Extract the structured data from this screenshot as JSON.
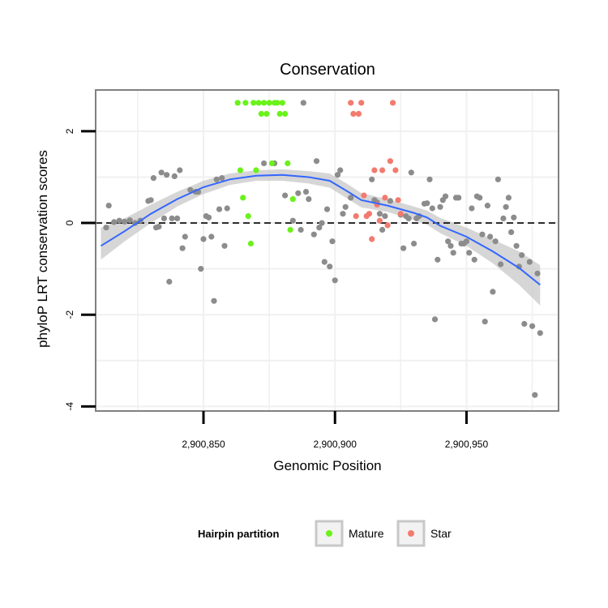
{
  "chart_data": {
    "type": "scatter",
    "title": "Conservation",
    "xlabel": "Genomic Position",
    "ylabel": "phyloP LRT conservation scores",
    "xlim": [
      2900809,
      2900985
    ],
    "ylim": [
      -4.1,
      2.9
    ],
    "x_ticks": [
      2900850,
      2900900,
      2900950
    ],
    "x_tick_labels": [
      "2,900,850",
      "2,900,900",
      "2,900,950"
    ],
    "y_ticks": [
      2,
      0,
      -2,
      -4
    ],
    "y_tick_labels": [
      "2",
      "0",
      "-2",
      "-4"
    ],
    "reference_line": {
      "y": 0,
      "style": "dashed"
    },
    "grid": true,
    "legend": {
      "title": "Hairpin partition",
      "position": "bottom",
      "entries": [
        {
          "label": "Mature",
          "color": "#6af21a"
        },
        {
          "label": "Star",
          "color": "#f27b6e"
        }
      ]
    },
    "colors": {
      "Mature": "#6af21a",
      "Star": "#f27b6e",
      "Other": "#8c8c8c",
      "smooth": "#3366ff",
      "ribbon": "#c8c8c8"
    },
    "series": [
      {
        "name": "Other",
        "points": [
          [
            2900813,
            -0.1
          ],
          [
            2900814,
            0.38
          ],
          [
            2900816,
            0.02
          ],
          [
            2900818,
            0.05
          ],
          [
            2900820,
            0.03
          ],
          [
            2900822,
            0.06
          ],
          [
            2900824,
            0.0
          ],
          [
            2900826,
            0.05
          ],
          [
            2900829,
            0.48
          ],
          [
            2900830,
            0.5
          ],
          [
            2900831,
            0.98
          ],
          [
            2900832,
            -0.1
          ],
          [
            2900833,
            -0.08
          ],
          [
            2900834,
            1.1
          ],
          [
            2900835,
            0.1
          ],
          [
            2900836,
            1.05
          ],
          [
            2900837,
            -1.28
          ],
          [
            2900838,
            0.1
          ],
          [
            2900839,
            1.02
          ],
          [
            2900840,
            0.1
          ],
          [
            2900841,
            1.15
          ],
          [
            2900842,
            -0.55
          ],
          [
            2900843,
            -0.3
          ],
          [
            2900845,
            0.72
          ],
          [
            2900847,
            0.68
          ],
          [
            2900848,
            0.68
          ],
          [
            2900849,
            -1.0
          ],
          [
            2900850,
            -0.35
          ],
          [
            2900851,
            0.15
          ],
          [
            2900852,
            0.12
          ],
          [
            2900853,
            -0.3
          ],
          [
            2900854,
            -1.7
          ],
          [
            2900855,
            0.95
          ],
          [
            2900856,
            0.3
          ],
          [
            2900857,
            0.98
          ],
          [
            2900858,
            -0.5
          ],
          [
            2900859,
            0.32
          ],
          [
            2900873,
            1.3
          ],
          [
            2900877,
            1.3
          ],
          [
            2900881,
            0.6
          ],
          [
            2900884,
            0.05
          ],
          [
            2900886,
            0.65
          ],
          [
            2900887,
            -0.15
          ],
          [
            2900888,
            2.62
          ],
          [
            2900889,
            0.68
          ],
          [
            2900890,
            0.52
          ],
          [
            2900892,
            -0.25
          ],
          [
            2900893,
            1.35
          ],
          [
            2900894,
            -0.1
          ],
          [
            2900895,
            0.0
          ],
          [
            2900896,
            -0.85
          ],
          [
            2900897,
            0.3
          ],
          [
            2900898,
            -0.95
          ],
          [
            2900899,
            -0.4
          ],
          [
            2900900,
            -1.25
          ],
          [
            2900901,
            1.05
          ],
          [
            2900902,
            1.15
          ],
          [
            2900903,
            0.2
          ],
          [
            2900904,
            0.35
          ],
          [
            2900906,
            0.55
          ],
          [
            2900914,
            0.95
          ],
          [
            2900915,
            0.5
          ],
          [
            2900916,
            0.45
          ],
          [
            2900917,
            0.2
          ],
          [
            2900918,
            -0.15
          ],
          [
            2900919,
            0.15
          ],
          [
            2900921,
            0.48
          ],
          [
            2900925,
            0.18
          ],
          [
            2900926,
            -0.55
          ],
          [
            2900927,
            0.15
          ],
          [
            2900928,
            0.1
          ],
          [
            2900929,
            1.1
          ],
          [
            2900930,
            -0.45
          ],
          [
            2900931,
            0.1
          ],
          [
            2900932,
            0.15
          ],
          [
            2900934,
            0.42
          ],
          [
            2900935,
            0.43
          ],
          [
            2900936,
            0.95
          ],
          [
            2900937,
            0.32
          ],
          [
            2900938,
            -2.1
          ],
          [
            2900939,
            -0.8
          ],
          [
            2900940,
            0.35
          ],
          [
            2900941,
            0.5
          ],
          [
            2900942,
            0.58
          ],
          [
            2900943,
            -0.4
          ],
          [
            2900944,
            -0.5
          ],
          [
            2900945,
            -0.65
          ],
          [
            2900946,
            0.55
          ],
          [
            2900947,
            0.55
          ],
          [
            2900948,
            -0.45
          ],
          [
            2900949,
            -0.45
          ],
          [
            2900950,
            -0.4
          ],
          [
            2900951,
            -0.65
          ],
          [
            2900952,
            0.32
          ],
          [
            2900953,
            -0.8
          ],
          [
            2900954,
            0.58
          ],
          [
            2900955,
            0.55
          ],
          [
            2900956,
            -0.25
          ],
          [
            2900957,
            -2.15
          ],
          [
            2900958,
            0.38
          ],
          [
            2900959,
            -0.3
          ],
          [
            2900960,
            -1.5
          ],
          [
            2900961,
            -0.4
          ],
          [
            2900962,
            0.95
          ],
          [
            2900963,
            -0.9
          ],
          [
            2900964,
            0.1
          ],
          [
            2900965,
            0.35
          ],
          [
            2900966,
            0.55
          ],
          [
            2900967,
            -0.2
          ],
          [
            2900968,
            0.12
          ],
          [
            2900969,
            -0.5
          ],
          [
            2900970,
            -0.95
          ],
          [
            2900971,
            -0.7
          ],
          [
            2900972,
            -2.2
          ],
          [
            2900974,
            -0.85
          ],
          [
            2900975,
            -2.25
          ],
          [
            2900976,
            -3.75
          ],
          [
            2900977,
            -1.1
          ],
          [
            2900978,
            -2.4
          ]
        ]
      },
      {
        "name": "Mature",
        "points": [
          [
            2900863,
            2.62
          ],
          [
            2900864,
            1.15
          ],
          [
            2900865,
            0.55
          ],
          [
            2900866,
            2.62
          ],
          [
            2900867,
            0.15
          ],
          [
            2900868,
            -0.45
          ],
          [
            2900869,
            2.62
          ],
          [
            2900870,
            1.15
          ],
          [
            2900871,
            2.62
          ],
          [
            2900872,
            2.38
          ],
          [
            2900873,
            2.62
          ],
          [
            2900874,
            2.38
          ],
          [
            2900875,
            2.62
          ],
          [
            2900876,
            1.3
          ],
          [
            2900877,
            2.62
          ],
          [
            2900878,
            2.62
          ],
          [
            2900879,
            2.38
          ],
          [
            2900880,
            2.62
          ],
          [
            2900881,
            2.38
          ],
          [
            2900882,
            1.3
          ],
          [
            2900883,
            -0.15
          ],
          [
            2900884,
            0.52
          ]
        ]
      },
      {
        "name": "Star",
        "points": [
          [
            2900906,
            2.62
          ],
          [
            2900907,
            2.38
          ],
          [
            2900908,
            0.15
          ],
          [
            2900909,
            2.38
          ],
          [
            2900910,
            2.62
          ],
          [
            2900911,
            0.6
          ],
          [
            2900912,
            0.15
          ],
          [
            2900913,
            0.2
          ],
          [
            2900914,
            -0.35
          ],
          [
            2900915,
            1.15
          ],
          [
            2900916,
            0.4
          ],
          [
            2900917,
            0.05
          ],
          [
            2900918,
            1.15
          ],
          [
            2900919,
            0.55
          ],
          [
            2900920,
            -0.05
          ],
          [
            2900921,
            1.35
          ],
          [
            2900922,
            2.62
          ],
          [
            2900923,
            1.15
          ],
          [
            2900924,
            0.5
          ],
          [
            2900925,
            0.2
          ]
        ]
      }
    ],
    "smooth_line": [
      [
        2900811,
        -0.5
      ],
      [
        2900820,
        -0.18
      ],
      [
        2900830,
        0.2
      ],
      [
        2900840,
        0.52
      ],
      [
        2900850,
        0.78
      ],
      [
        2900860,
        0.95
      ],
      [
        2900870,
        1.03
      ],
      [
        2900880,
        1.05
      ],
      [
        2900890,
        1.0
      ],
      [
        2900898,
        0.92
      ],
      [
        2900905,
        0.68
      ],
      [
        2900910,
        0.5
      ],
      [
        2900920,
        0.38
      ],
      [
        2900930,
        0.22
      ],
      [
        2900935,
        0.12
      ],
      [
        2900940,
        -0.06
      ],
      [
        2900950,
        -0.3
      ],
      [
        2900960,
        -0.62
      ],
      [
        2900970,
        -0.98
      ],
      [
        2900978,
        -1.35
      ]
    ],
    "smooth_band": [
      [
        2900811,
        -0.8,
        -0.1
      ],
      [
        2900820,
        -0.4,
        0.1
      ],
      [
        2900830,
        0.0,
        0.4
      ],
      [
        2900840,
        0.36,
        0.68
      ],
      [
        2900850,
        0.63,
        0.92
      ],
      [
        2900860,
        0.83,
        1.08
      ],
      [
        2900870,
        0.92,
        1.15
      ],
      [
        2900880,
        0.92,
        1.17
      ],
      [
        2900890,
        0.86,
        1.13
      ],
      [
        2900898,
        0.77,
        1.08
      ],
      [
        2900905,
        0.52,
        0.84
      ],
      [
        2900910,
        0.34,
        0.65
      ],
      [
        2900920,
        0.24,
        0.52
      ],
      [
        2900930,
        0.07,
        0.36
      ],
      [
        2900935,
        -0.04,
        0.27
      ],
      [
        2900940,
        -0.22,
        0.11
      ],
      [
        2900950,
        -0.5,
        -0.1
      ],
      [
        2900960,
        -0.88,
        -0.36
      ],
      [
        2900970,
        -1.35,
        -0.62
      ],
      [
        2900978,
        -1.8,
        -0.92
      ]
    ]
  }
}
